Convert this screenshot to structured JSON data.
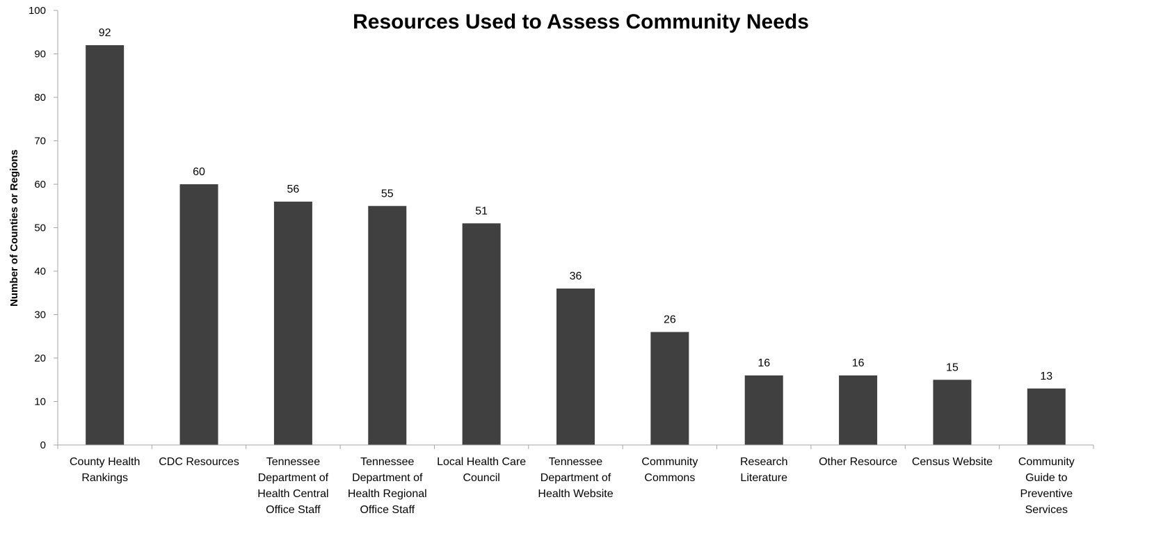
{
  "chart_data": {
    "type": "bar",
    "title": "Resources Used to Assess Community Needs",
    "xlabel": "",
    "ylabel": "Number of Counties or Regions",
    "ylim": [
      0,
      100
    ],
    "yticks": [
      0,
      10,
      20,
      30,
      40,
      50,
      60,
      70,
      80,
      90,
      100
    ],
    "grid": false,
    "legend": "none",
    "bar_color": "#404040",
    "categories": [
      [
        "County Health",
        "Rankings"
      ],
      [
        "CDC Resources"
      ],
      [
        "Tennessee",
        "Department of",
        "Health Central",
        "Office Staff"
      ],
      [
        "Tennessee",
        "Department of",
        "Health Regional",
        "Office Staff"
      ],
      [
        "Local Health Care",
        "Council"
      ],
      [
        "Tennessee",
        "Department of",
        "Health Website"
      ],
      [
        "Community",
        "Commons"
      ],
      [
        "Research",
        "Literature"
      ],
      [
        "Other Resource"
      ],
      [
        "Census Website"
      ],
      [
        "Community",
        "Guide to",
        "Preventive",
        "Services"
      ]
    ],
    "values": [
      92,
      60,
      56,
      55,
      51,
      36,
      26,
      16,
      16,
      15,
      13
    ]
  }
}
